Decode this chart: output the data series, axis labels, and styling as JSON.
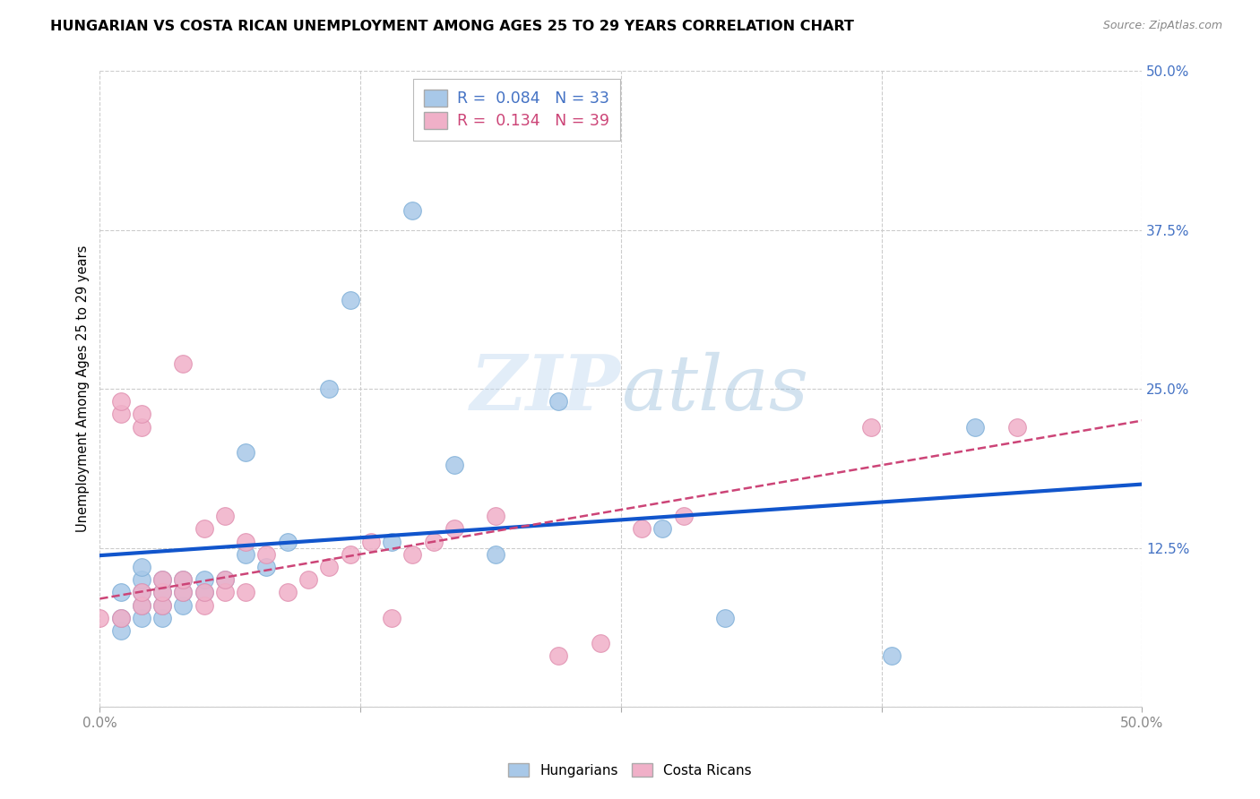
{
  "title": "HUNGARIAN VS COSTA RICAN UNEMPLOYMENT AMONG AGES 25 TO 29 YEARS CORRELATION CHART",
  "source": "Source: ZipAtlas.com",
  "ylabel": "Unemployment Among Ages 25 to 29 years",
  "xlim": [
    0.0,
    0.5
  ],
  "ylim": [
    0.0,
    0.5
  ],
  "xticks": [
    0.0,
    0.125,
    0.25,
    0.375,
    0.5
  ],
  "xticklabels": [
    "0.0%",
    "",
    "",
    "",
    "50.0%"
  ],
  "yticks": [
    0.125,
    0.25,
    0.375,
    0.5
  ],
  "yticklabels": [
    "12.5%",
    "25.0%",
    "37.5%",
    "50.0%"
  ],
  "background_color": "#ffffff",
  "grid_color": "#cccccc",
  "hungarian_color": "#a8c8e8",
  "costa_rican_color": "#f0b0c8",
  "hungarian_line_color": "#1155cc",
  "costa_rican_line_color": "#cc4477",
  "legend_color_h": "#4472c4",
  "legend_color_c": "#cc4477",
  "hungarian_R": "0.084",
  "hungarian_N": "33",
  "costa_rican_R": "0.134",
  "costa_rican_N": "39",
  "watermark_zip": "ZIP",
  "watermark_atlas": "atlas",
  "hungarian_x": [
    0.01,
    0.01,
    0.01,
    0.02,
    0.02,
    0.02,
    0.02,
    0.02,
    0.03,
    0.03,
    0.03,
    0.03,
    0.04,
    0.04,
    0.04,
    0.05,
    0.05,
    0.06,
    0.07,
    0.07,
    0.08,
    0.09,
    0.11,
    0.12,
    0.14,
    0.15,
    0.17,
    0.19,
    0.22,
    0.27,
    0.3,
    0.38,
    0.42
  ],
  "hungarian_y": [
    0.06,
    0.07,
    0.09,
    0.07,
    0.08,
    0.09,
    0.1,
    0.11,
    0.07,
    0.08,
    0.09,
    0.1,
    0.08,
    0.09,
    0.1,
    0.09,
    0.1,
    0.1,
    0.12,
    0.2,
    0.11,
    0.13,
    0.25,
    0.32,
    0.13,
    0.39,
    0.19,
    0.12,
    0.24,
    0.14,
    0.07,
    0.04,
    0.22
  ],
  "costa_rican_x": [
    0.0,
    0.01,
    0.01,
    0.01,
    0.02,
    0.02,
    0.02,
    0.02,
    0.03,
    0.03,
    0.03,
    0.04,
    0.04,
    0.04,
    0.05,
    0.05,
    0.05,
    0.06,
    0.06,
    0.06,
    0.07,
    0.07,
    0.08,
    0.09,
    0.1,
    0.11,
    0.12,
    0.13,
    0.14,
    0.15,
    0.16,
    0.17,
    0.19,
    0.22,
    0.24,
    0.26,
    0.28,
    0.37,
    0.44
  ],
  "costa_rican_y": [
    0.07,
    0.07,
    0.23,
    0.24,
    0.08,
    0.09,
    0.22,
    0.23,
    0.08,
    0.09,
    0.1,
    0.09,
    0.1,
    0.27,
    0.08,
    0.09,
    0.14,
    0.09,
    0.1,
    0.15,
    0.09,
    0.13,
    0.12,
    0.09,
    0.1,
    0.11,
    0.12,
    0.13,
    0.07,
    0.12,
    0.13,
    0.14,
    0.15,
    0.04,
    0.05,
    0.14,
    0.15,
    0.22,
    0.22
  ],
  "h_trend_x0": 0.0,
  "h_trend_y0": 0.119,
  "h_trend_x1": 0.5,
  "h_trend_y1": 0.175,
  "c_trend_x0": 0.0,
  "c_trend_y0": 0.085,
  "c_trend_x1": 0.5,
  "c_trend_y1": 0.225
}
